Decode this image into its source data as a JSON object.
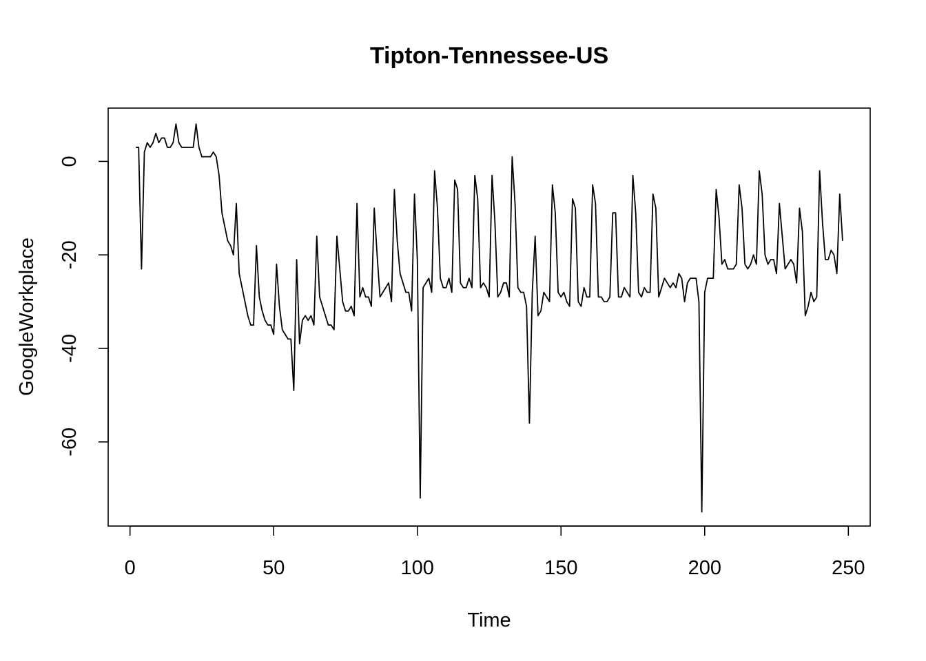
{
  "chart_data": {
    "type": "line",
    "title": "Tipton-Tennessee-US",
    "xlabel": "Time",
    "ylabel": "GoogleWorkplace",
    "xlim": [
      -7.6,
      257.6
    ],
    "ylim": [
      -78,
      11.4
    ],
    "x_ticks": [
      0,
      50,
      100,
      150,
      200,
      250
    ],
    "y_ticks": [
      0,
      -20,
      -40,
      -60
    ],
    "grid": false,
    "legend": "none",
    "series": [
      {
        "x_start": 2,
        "values": [
          3,
          3,
          -23,
          2,
          4,
          3,
          4,
          6,
          4,
          5,
          5,
          3,
          3,
          4,
          8,
          4,
          3,
          3,
          3,
          3,
          3,
          8,
          3,
          1,
          1,
          1,
          1,
          2,
          1,
          -3,
          -11,
          -14,
          -17,
          -18,
          -20,
          -9,
          -24,
          -27,
          -30,
          -33,
          -35,
          -35,
          -18,
          -29,
          -32,
          -34,
          -35,
          -35,
          -37,
          -22,
          -31,
          -36,
          -37,
          -38,
          -38,
          -49,
          -21,
          -39,
          -34,
          -33,
          -34,
          -33,
          -35,
          -16,
          -29,
          -31,
          -33,
          -35,
          -35,
          -36,
          -16,
          -23,
          -30,
          -32,
          -32,
          -31,
          -33,
          -9,
          -29,
          -27,
          -29,
          -29,
          -31,
          -10,
          -20,
          -29,
          -28,
          -27,
          -26,
          -30,
          -6,
          -17,
          -24,
          -26,
          -28,
          -28,
          -32,
          -7,
          -21,
          -72,
          -27,
          -26,
          -25,
          -28,
          -2,
          -10,
          -25,
          -27,
          -27,
          -25,
          -28,
          -4,
          -6,
          -26,
          -27,
          -27,
          -25,
          -27,
          -3,
          -8,
          -27,
          -26,
          -27,
          -29,
          -3,
          -13,
          -29,
          -28,
          -26,
          -26,
          -29,
          1,
          -9,
          -27,
          -28,
          -28,
          -31,
          -56,
          -28,
          -16,
          -33,
          -32,
          -28,
          -29,
          -30,
          -5,
          -11,
          -28,
          -29,
          -28,
          -30,
          -31,
          -8,
          -10,
          -30,
          -31,
          -27,
          -29,
          -29,
          -5,
          -9,
          -29,
          -29,
          -30,
          -30,
          -29,
          -11,
          -11,
          -29,
          -29,
          -27,
          -28,
          -29,
          -3,
          -11,
          -28,
          -29,
          -27,
          -28,
          -28,
          -7,
          -10,
          -29,
          -27,
          -25,
          -26,
          -27,
          -26,
          -27,
          -24,
          -25,
          -30,
          -26,
          -25,
          -25,
          -25,
          -30,
          -75,
          -28,
          -25,
          -25,
          -25,
          -6,
          -12,
          -22,
          -21,
          -23,
          -23,
          -23,
          -22,
          -5,
          -10,
          -22,
          -23,
          -22,
          -20,
          -22,
          -2,
          -7,
          -20,
          -22,
          -21,
          -21,
          -24,
          -9,
          -16,
          -23,
          -22,
          -21,
          -22,
          -26,
          -10,
          -15,
          -33,
          -31,
          -28,
          -30,
          -29,
          -2,
          -13,
          -21,
          -21,
          -19,
          -20,
          -24,
          -7,
          -17
        ]
      }
    ]
  }
}
